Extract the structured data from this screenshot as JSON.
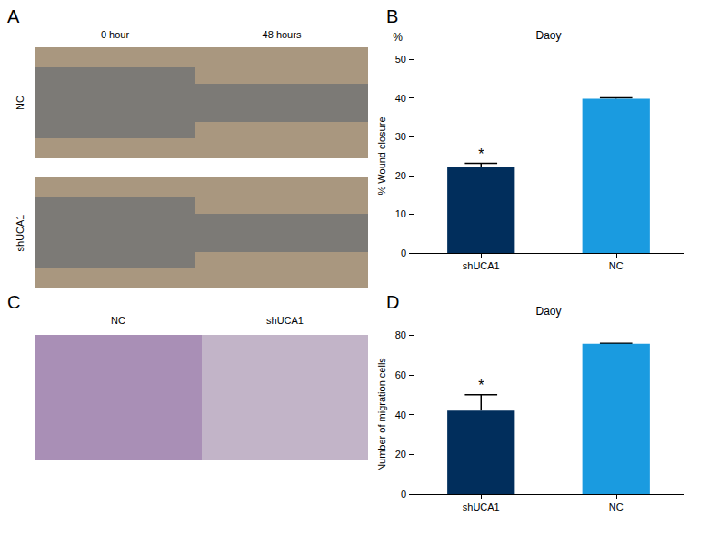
{
  "panels": {
    "A": {
      "label": "A",
      "columns": [
        "0 hour",
        "48 hours"
      ],
      "rows": [
        "NC",
        "shUCA1"
      ]
    },
    "C": {
      "label": "C",
      "columns": [
        "NC",
        "shUCA1"
      ]
    }
  },
  "chart_data": [
    {
      "panel": "B",
      "type": "bar",
      "title": "Daoy",
      "unit_label": "%",
      "ylabel": "% Wound closure",
      "categories": [
        "shUCA1",
        "NC"
      ],
      "values": [
        22.3,
        39.8
      ],
      "errors": [
        0.8,
        0.2
      ],
      "colors": [
        "#012e5c",
        "#1a9be0"
      ],
      "ylim": [
        0,
        50
      ],
      "yticks": [
        0,
        10,
        20,
        30,
        40,
        50
      ],
      "grid": false,
      "annotations": [
        {
          "category": "shUCA1",
          "text": "*"
        }
      ]
    },
    {
      "panel": "D",
      "type": "bar",
      "title": "Daoy",
      "ylabel": "Number of migration cells",
      "categories": [
        "shUCA1",
        "NC"
      ],
      "values": [
        42,
        75.5
      ],
      "errors": [
        8,
        0.3
      ],
      "colors": [
        "#012e5c",
        "#1a9be0"
      ],
      "ylim": [
        0,
        80
      ],
      "yticks": [
        0,
        20,
        40,
        60,
        80
      ],
      "grid": false,
      "annotations": [
        {
          "category": "shUCA1",
          "text": "*"
        }
      ]
    }
  ]
}
